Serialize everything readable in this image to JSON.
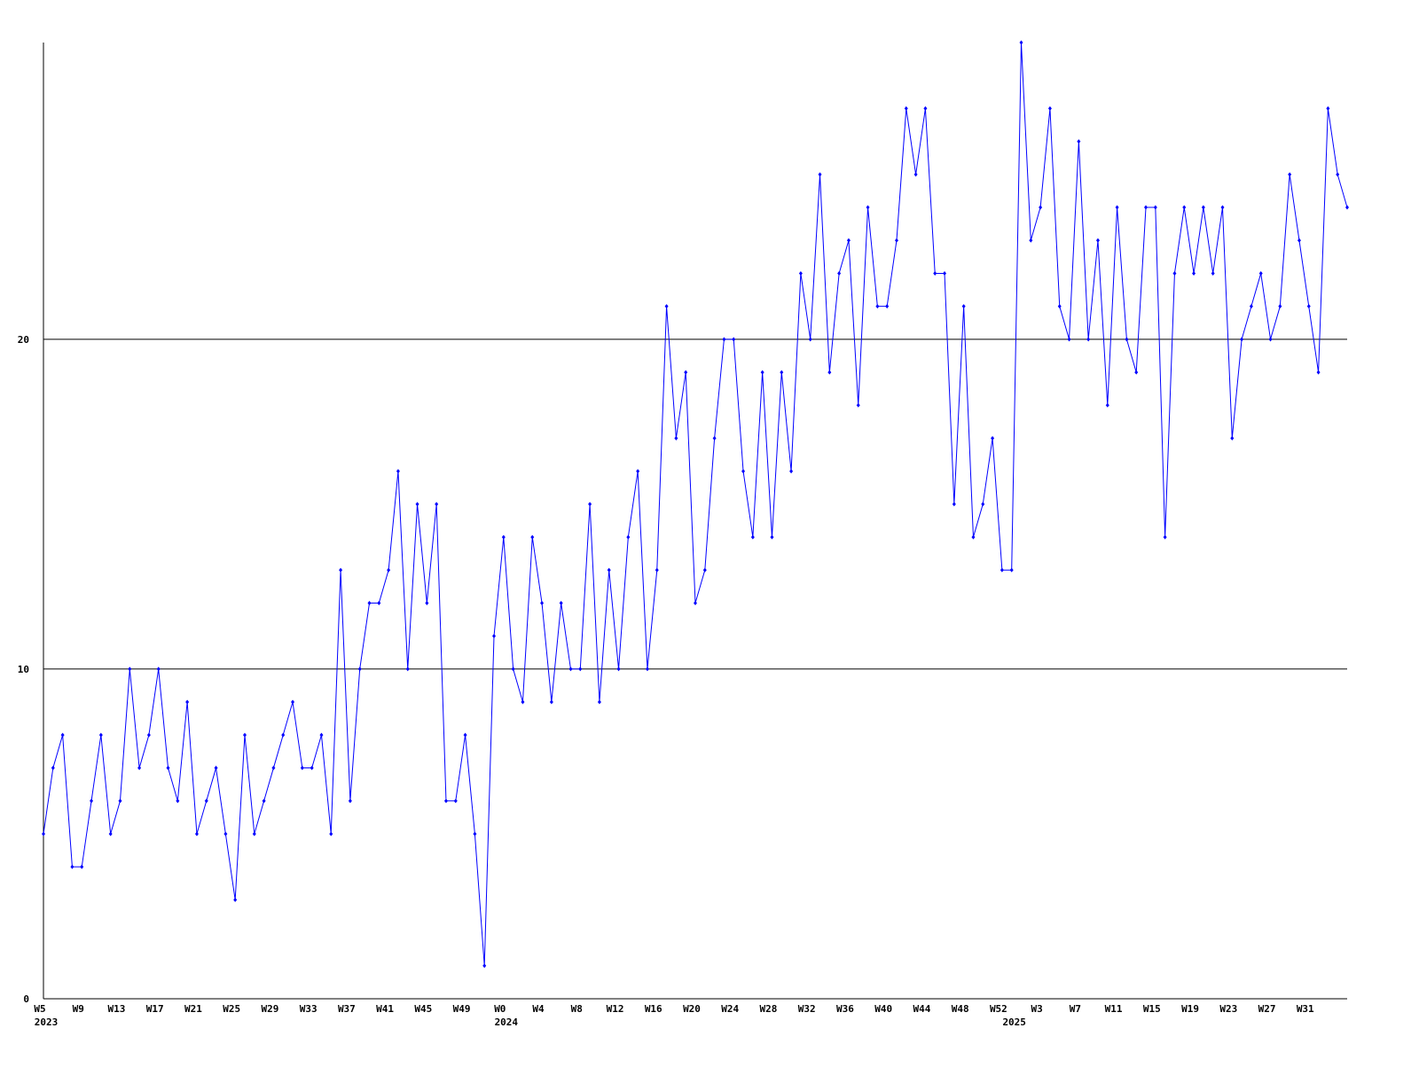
{
  "chart_data": {
    "type": "line",
    "categories": [
      "W5",
      null,
      null,
      null,
      "W9",
      null,
      null,
      null,
      "W13",
      null,
      null,
      null,
      "W17",
      null,
      null,
      null,
      "W21",
      null,
      null,
      null,
      "W25",
      null,
      null,
      null,
      "W29",
      null,
      null,
      null,
      "W33",
      null,
      null,
      null,
      "W37",
      null,
      null,
      null,
      "W41",
      null,
      null,
      null,
      "W45",
      null,
      null,
      null,
      "W49",
      null,
      null,
      null,
      "W0",
      null,
      null,
      null,
      "W4",
      null,
      null,
      null,
      "W8",
      null,
      null,
      null,
      "W12",
      null,
      null,
      null,
      "W16",
      null,
      null,
      null,
      "W20",
      null,
      null,
      null,
      "W24",
      null,
      null,
      null,
      "W28",
      null,
      null,
      null,
      "W32",
      null,
      null,
      null,
      "W36",
      null,
      null,
      null,
      "W40",
      null,
      null,
      null,
      "W44",
      null,
      null,
      null,
      "W48",
      null,
      null,
      null,
      "W52",
      null,
      null,
      null,
      "W3",
      null,
      null,
      null,
      "W7",
      null,
      null,
      null,
      "W11",
      null,
      null,
      null,
      "W15",
      null,
      null,
      null,
      "W19",
      null,
      null,
      null,
      "W23",
      null,
      null,
      null,
      "W27",
      null,
      null,
      null,
      "W31",
      null,
      null,
      null,
      null
    ],
    "category_years": [
      "2023",
      null,
      null,
      null,
      null,
      null,
      null,
      null,
      null,
      null,
      null,
      null,
      null,
      null,
      null,
      null,
      null,
      null,
      null,
      null,
      null,
      null,
      null,
      null,
      null,
      null,
      null,
      null,
      null,
      null,
      null,
      null,
      null,
      null,
      null,
      null,
      null,
      null,
      null,
      null,
      null,
      null,
      null,
      null,
      null,
      null,
      null,
      null,
      "2024",
      null,
      null,
      null,
      null,
      null,
      null,
      null,
      null,
      null,
      null,
      null,
      null,
      null,
      null,
      null,
      null,
      null,
      null,
      null,
      null,
      null,
      null,
      null,
      null,
      null,
      null,
      null,
      null,
      null,
      null,
      null,
      null,
      null,
      null,
      null,
      null,
      null,
      null,
      null,
      null,
      null,
      null,
      null,
      null,
      null,
      null,
      null,
      null,
      null,
      null,
      null,
      null,
      "2025",
      null,
      null,
      null,
      null,
      null,
      null,
      null,
      null,
      null,
      null,
      null,
      null,
      null,
      null,
      null,
      null,
      null,
      null,
      null,
      null,
      null,
      null,
      null,
      null,
      null,
      null,
      null,
      null,
      null,
      null,
      null,
      null,
      null,
      null
    ],
    "series": [
      {
        "color": "#0000ff",
        "values": [
          5,
          7,
          8,
          4,
          4,
          6,
          8,
          5,
          6,
          10,
          7,
          8,
          10,
          7,
          6,
          9,
          5,
          6,
          7,
          5,
          3,
          8,
          5,
          6,
          7,
          8,
          9,
          7,
          7,
          8,
          5,
          13,
          6,
          10,
          12,
          12,
          13,
          16,
          10,
          15,
          12,
          15,
          6,
          6,
          8,
          5,
          1,
          11,
          14,
          10,
          9,
          14,
          12,
          9,
          12,
          10,
          10,
          15,
          9,
          13,
          10,
          14,
          16,
          10,
          13,
          21,
          17,
          19,
          12,
          13,
          17,
          20,
          20,
          16,
          14,
          19,
          14,
          19,
          16,
          22,
          20,
          25,
          19,
          22,
          23,
          18,
          24,
          21,
          21,
          23,
          27,
          25,
          27,
          22,
          22,
          15,
          21,
          14,
          15,
          17,
          13,
          13,
          29,
          23,
          24,
          27,
          21,
          20,
          26,
          20,
          23,
          18,
          24,
          20,
          19,
          24,
          24,
          14,
          22,
          24,
          22,
          24,
          22,
          24,
          17,
          20,
          21,
          22,
          20,
          21,
          25,
          23,
          21,
          19,
          27,
          25,
          24
        ]
      }
    ],
    "ylim": [
      0,
      29
    ],
    "yticks": [
      0,
      10,
      20
    ],
    "grid": true
  }
}
